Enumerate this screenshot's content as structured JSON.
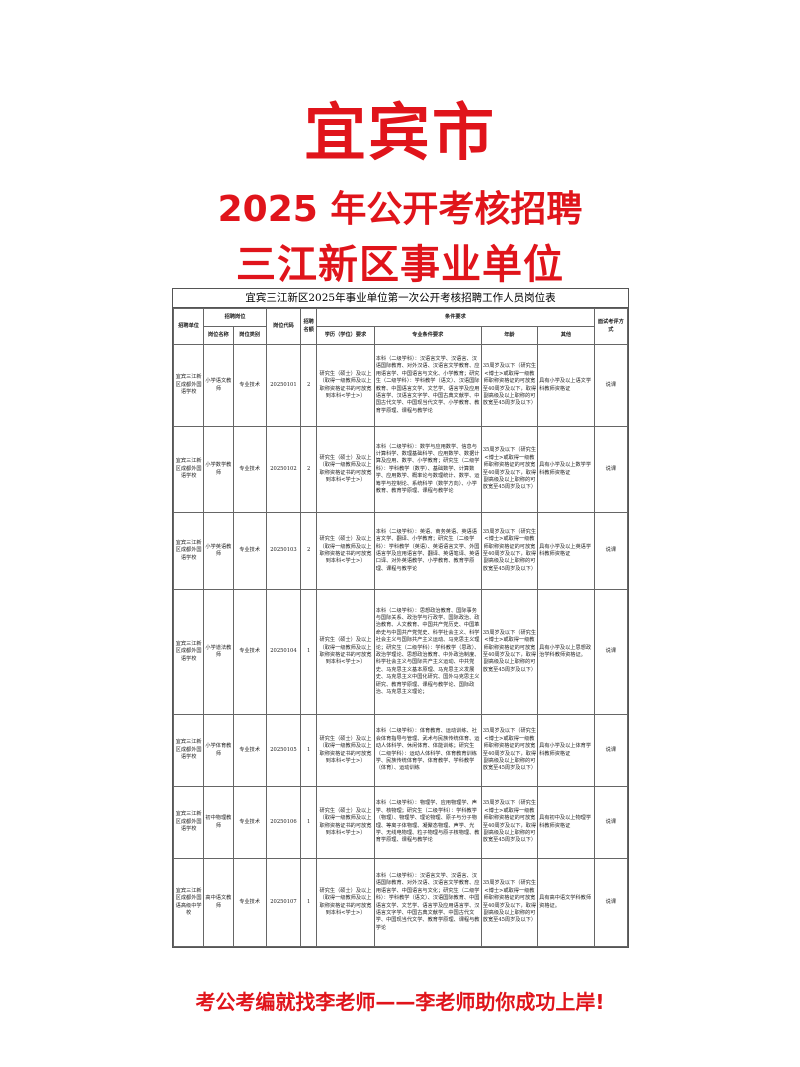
{
  "poster": {
    "title_city": "宜宾市",
    "title_line2": "2025 年公开考核招聘",
    "title_line3": "三江新区事业单位",
    "footer": "考公考编就找李老师——李老师助你成功上岸!",
    "accent_color": "#e0141b"
  },
  "table": {
    "title": "宜宾三江新区2025年事业单位第一次公开考核招聘工作人员岗位表",
    "headers": {
      "unit": "招聘单位",
      "position_group": "招聘岗位",
      "position_name": "岗位名称",
      "position_type": "岗位类别",
      "code": "岗位代码",
      "quota": "招聘名额",
      "conditions": "条件要求",
      "education": "学历（学位）要求",
      "major": "专业条件要求",
      "age": "年龄",
      "other": "其他",
      "method": "面试考评方式"
    },
    "rows": [
      {
        "unit": "宜宾三江新区成都外国语学校",
        "name": "小学语文教师",
        "type": "专业技术",
        "code": "20250101",
        "quota": "2",
        "education": "研究生（硕士）及以上（取得一级教师及以上职称资格证书的可放宽到本科<学士>）",
        "major": "本科（二级学科）：汉语言文学、汉语言、汉语国际教育、对外汉语、汉语言文学教育、应用语言学、中国语言与文化、小学教育；研究生（二级学科）：学科教学（语文）、汉语国际教育、中国语言文学、文艺学、语言学及应用语言学、汉语言文字学、中国古典文献学、中国古代文学、中国现当代文学、小学教育、教育学原理、课程与教学论",
        "age": "35周岁及以下（研究生<博士>或取得一级教师职称资格证的可放宽至40周岁及以下，取得副高级及以上职称的可放宽至45周岁及以下）",
        "other": "具有小学及以上语文学科教师资格证",
        "method": "说课"
      },
      {
        "unit": "宜宾三江新区成都外国语学校",
        "name": "小学数学教师",
        "type": "专业技术",
        "code": "20250102",
        "quota": "2",
        "education": "研究生（硕士）及以上（取得一级教师及以上职称资格证书的可放宽到本科<学士>）",
        "major": "本科（二级学科）：数学与应用数学、信息与计算科学、数理基础科学、应用数学、数据计算及应用、数学、小学教育；研究生（二级学科）：学科教学（数学）、基础数学、计算数学、应用数学、概率论与数理统计、数学、运筹学与控制论、系统科学（数学方向）、小学教育、教育学原理、课程与教学论",
        "age": "35周岁及以下（研究生<博士>或取得一级教师职称资格证的可放宽至40周岁及以下，取得副高级及以上职称的可放宽至45周岁及以下）",
        "other": "具有小学及以上数学学科教师资格证",
        "method": "说课"
      },
      {
        "unit": "宜宾三江新区成都外国语学校",
        "name": "小学英语教师",
        "type": "专业技术",
        "code": "20250103",
        "quota": "2",
        "education": "研究生（硕士）及以上（取得一级教师及以上职称资格证书的可放宽到本科<学士>）",
        "major": "本科（二级学科）：英语、商务英语、英语语言文学、翻译、小学教育；研究生（二级学科）：学科教学（英语）、英语语言文学、外国语言学及应用语言学、翻译、英语笔译、英语口译、对外英语教学、小学教育、教育学原理、课程与教学论",
        "age": "35周岁及以下（研究生<博士>或取得一级教师职称资格证的可放宽至40周岁及以下，取得副高级及以上职称的可放宽至45周岁及以下）",
        "other": "具有小学及以上英语学科教师资格证",
        "method": "说课"
      },
      {
        "unit": "宜宾三江新区成都外国语学校",
        "name": "小学道法教师",
        "type": "专业技术",
        "code": "20250104",
        "quota": "1",
        "education": "研究生（硕士）及以上（取得一级教师及以上职称资格证书的可放宽到本科<学士>）",
        "major": "本科（二级学科）：思想政治教育、国际事务与国际关系、政治学与行政学、国际政治、政治教育、人文教育、中国共产党历史、中国革命史与中国共产党党史、科学社会主义、科学社会主义与国际共产主义运动、马克思主义理论；研究生（二级学科）：学科教学（思政）、政治学理论、思想政治教育、中外政治制度、科学社会主义与国际共产主义运动、中共党史、马克思主义基本原理、马克思主义发展史、马克思主义中国化研究、国外马克思主义研究、教育学原理、课程与教学论、国际政治、马克思主义理论；",
        "age": "35周岁及以下（研究生<博士>或取得一级教师职称资格证的可放宽至40周岁及以下，取得副高级及以上职称的可放宽至45周岁及以下）",
        "other": "具有小学及以上思想政治学科教师资格证。",
        "method": "说课"
      },
      {
        "unit": "宜宾三江新区成都外国语学校",
        "name": "小学体育教师",
        "type": "专业技术",
        "code": "20250105",
        "quota": "1",
        "education": "研究生（硕士）及以上（取得一级教师及以上职称资格证书的可放宽到本科<学士>）",
        "major": "本科（二级学科）：体育教育、运动训练、社会体育指导与管理、武术与民族传统体育、运动人体科学、休闲体育、体能训练；研究生（二级学科）：运动人体科学、体育教育训练学、民族传统体育学、体育教学、学科教学（体育）、运动训练",
        "age": "35周岁及以下（研究生<博士>或取得一级教师职称资格证的可放宽至40周岁及以下，取得副高级及以上职称的可放宽至45周岁及以下）",
        "other": "具有小学及以上体育学科教师资格证",
        "method": "说课"
      },
      {
        "unit": "宜宾三江新区成都外国语学校",
        "name": "初中物理教师",
        "type": "专业技术",
        "code": "20250106",
        "quota": "1",
        "education": "研究生（硕士）及以上（取得一级教师及以上职称资格证书的可放宽到本科<学士>）",
        "major": "本科（二级学科）：物理学、应用物理学、声学、核物理；研究生（二级学科）：学科教学（物理）、物理学、理论物理、原子与分子物理、等离子体物理、凝聚态物理、声学、光学、无线电物理、粒子物理与原子核物理、教育学原理、课程与教学论",
        "age": "35周岁及以下（研究生<博士>或取得一级教师职称资格证的可放宽至40周岁及以下，取得副高级及以上职称的可放宽至45周岁及以下）",
        "other": "具有初中及以上物理学科教师资格证",
        "method": "说课"
      },
      {
        "unit": "宜宾三江新区成都外国语高级中学校",
        "name": "高中语文教师",
        "type": "专业技术",
        "code": "20250107",
        "quota": "1",
        "education": "研究生（硕士）及以上（取得一级教师及以上职称资格证书的可放宽到本科<学士>）",
        "major": "本科（二级学科）：汉语言文学、汉语言、汉语国际教育、对外汉语、汉语言文学教育、应用语言学、中国语言与文化；研究生（二级学科）：学科教学（语文）、汉语国际教育、中国语言文学、文艺学、语言学及应用语言学、汉语言文字学、中国古典文献学、中国古代文学、中国现当代文学、教育学原理、课程与教学论",
        "age": "35周岁及以下（研究生<博士>或取得一级教师职称资格证的可放宽至40周岁及以下，取得副高级及以上职称的可放宽至45周岁及以下）",
        "other": "具有高中语文学科教师资格证。",
        "method": "说课"
      }
    ]
  }
}
